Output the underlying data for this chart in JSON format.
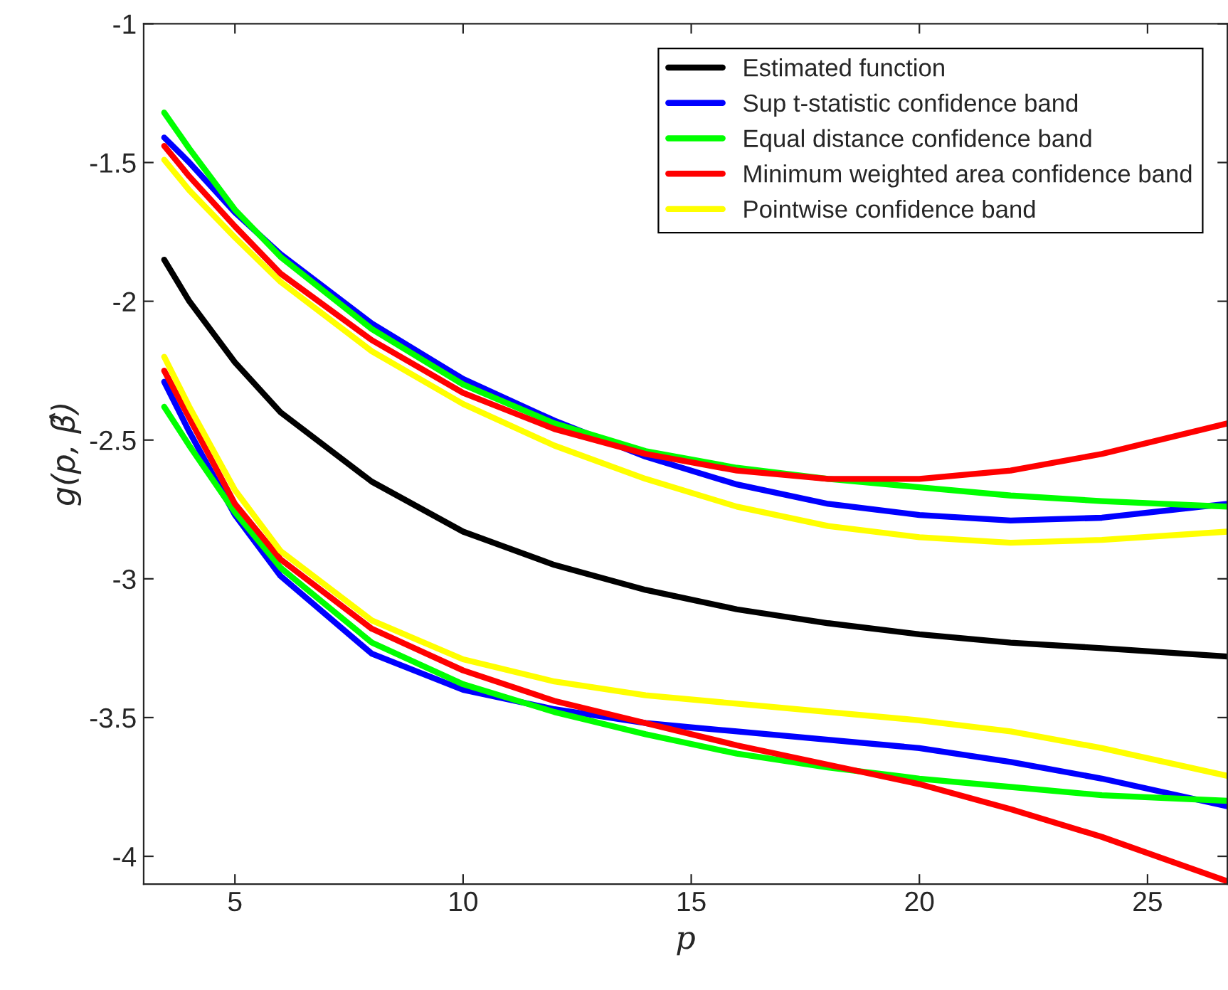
{
  "chart_data": {
    "type": "line",
    "xlabel": "p",
    "ylabel": "g(p, β̂)",
    "x": [
      3.45,
      4,
      5,
      6,
      8,
      10,
      12,
      14,
      16,
      18,
      20,
      22,
      24,
      26.75
    ],
    "series": [
      {
        "name": "Estimated function",
        "color": "#000000",
        "values": [
          -1.85,
          -2.0,
          -2.22,
          -2.4,
          -2.65,
          -2.83,
          -2.95,
          -3.04,
          -3.11,
          -3.16,
          -3.2,
          -3.23,
          -3.25,
          -3.28
        ]
      },
      {
        "name": "Sup t-statistic confidence band",
        "color": "#0000ff",
        "values": [
          -1.41,
          -1.5,
          -1.68,
          -1.83,
          -2.08,
          -2.28,
          -2.43,
          -2.56,
          -2.66,
          -2.73,
          -2.77,
          -2.79,
          -2.78,
          -2.73
        ]
      },
      {
        "name": "Equal distance confidence band",
        "color": "#00ff00",
        "values": [
          -1.32,
          -1.45,
          -1.67,
          -1.84,
          -2.1,
          -2.3,
          -2.44,
          -2.54,
          -2.6,
          -2.64,
          -2.67,
          -2.7,
          -2.72,
          -2.74
        ]
      },
      {
        "name": "Minimum weighted area confidence band",
        "color": "#ff0000",
        "values": [
          -1.44,
          -1.55,
          -1.73,
          -1.9,
          -2.14,
          -2.33,
          -2.46,
          -2.55,
          -2.61,
          -2.64,
          -2.64,
          -2.61,
          -2.55,
          -2.44
        ]
      },
      {
        "name": "Pointwise confidence band",
        "color": "#ffff00",
        "values": [
          -1.49,
          -1.6,
          -1.77,
          -1.93,
          -2.18,
          -2.37,
          -2.52,
          -2.64,
          -2.74,
          -2.81,
          -2.85,
          -2.87,
          -2.86,
          -2.83
        ]
      },
      {
        "color": "#0000ff",
        "values": [
          -2.29,
          -2.47,
          -2.77,
          -2.99,
          -3.27,
          -3.4,
          -3.47,
          -3.52,
          -3.55,
          -3.58,
          -3.61,
          -3.66,
          -3.72,
          -3.82
        ]
      },
      {
        "color": "#00ff00",
        "values": [
          -2.38,
          -2.52,
          -2.76,
          -2.96,
          -3.23,
          -3.38,
          -3.48,
          -3.56,
          -3.63,
          -3.68,
          -3.72,
          -3.75,
          -3.78,
          -3.8
        ]
      },
      {
        "color": "#ff0000",
        "values": [
          -2.25,
          -2.42,
          -2.73,
          -2.93,
          -3.18,
          -3.33,
          -3.44,
          -3.52,
          -3.6,
          -3.67,
          -3.74,
          -3.83,
          -3.93,
          -4.09
        ]
      },
      {
        "color": "#ffff00",
        "values": [
          -2.2,
          -2.38,
          -2.68,
          -2.9,
          -3.15,
          -3.29,
          -3.37,
          -3.42,
          -3.45,
          -3.48,
          -3.51,
          -3.55,
          -3.61,
          -3.71
        ]
      }
    ],
    "xlim": [
      3.0,
      26.75
    ],
    "ylim": [
      -4.1,
      -1
    ],
    "xticks": [
      5,
      10,
      15,
      20,
      25
    ],
    "yticks": [
      -1,
      -1.5,
      -2,
      -2.5,
      -3,
      -3.5,
      -4
    ],
    "legend": "top right",
    "grid": false,
    "marker": "none",
    "line_style": "solid"
  }
}
